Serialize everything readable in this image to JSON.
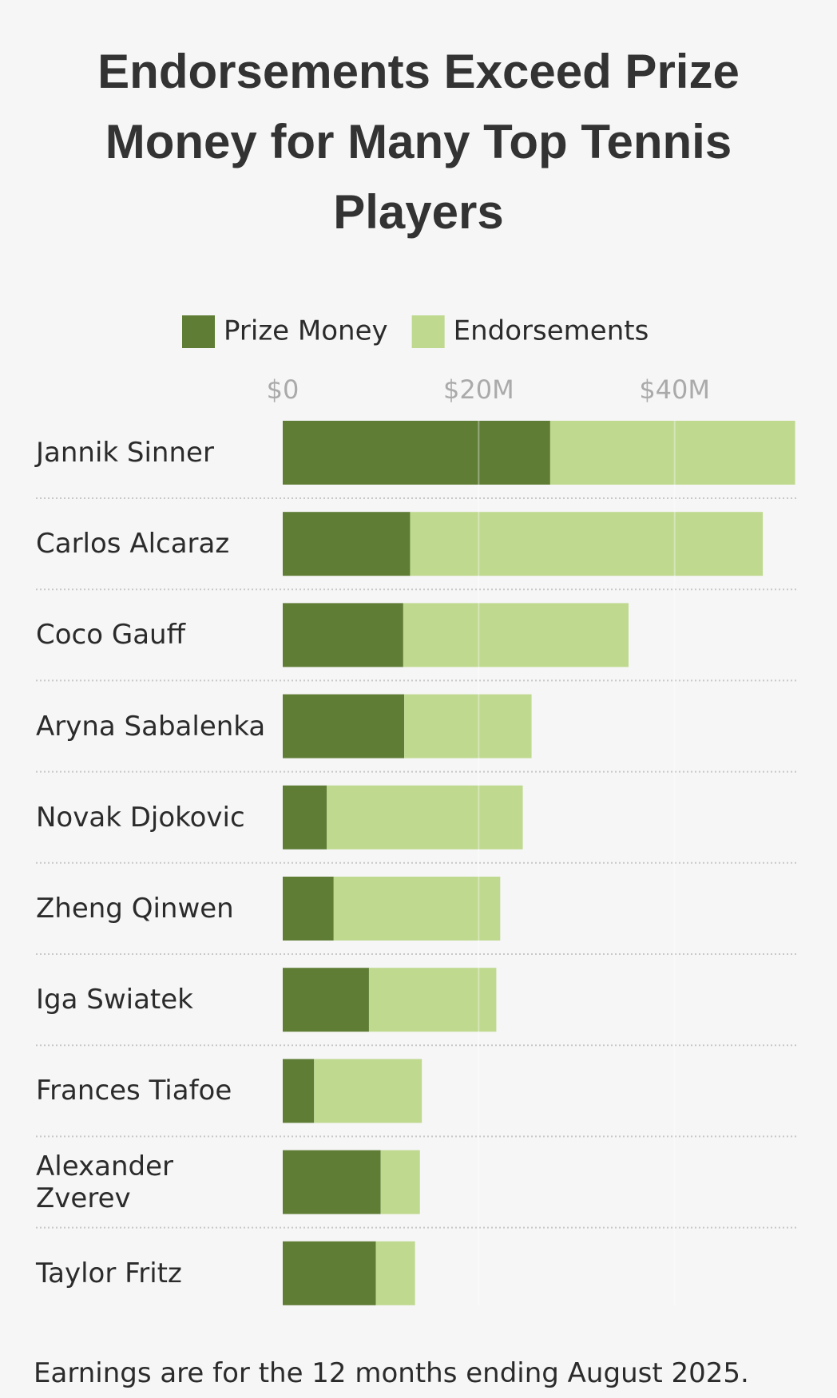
{
  "chart_data": {
    "type": "bar",
    "orientation": "horizontal",
    "stacked": true,
    "title": "Endorsements Exceed Prize Money for Many Top Tennis Players",
    "categories": [
      "Jannik Sinner",
      "Carlos Alcaraz",
      "Coco Gauff",
      "Aryna Sabalenka",
      "Novak Djokovic",
      "Zheng Qinwen",
      "Iga Swiatek",
      "Frances Tiafoe",
      "Alexander Zverev",
      "Taylor Fritz"
    ],
    "series": [
      {
        "name": "Prize Money",
        "color": "#5f7d35",
        "values": [
          27.3,
          13,
          12.3,
          12.4,
          4.5,
          5.2,
          8.8,
          3.2,
          10,
          9.5
        ]
      },
      {
        "name": "Endorsements",
        "color": "#bfd98f",
        "values": [
          25,
          36,
          23,
          13,
          20,
          17,
          13,
          11,
          4,
          4
        ]
      }
    ],
    "xlim": [
      0,
      52.5
    ],
    "xticks": [
      {
        "value": 0,
        "label": "$0"
      },
      {
        "value": 20,
        "label": "$20M"
      },
      {
        "value": 40,
        "label": "$40M"
      }
    ],
    "grid": true,
    "note": "Earnings are for the 12 months ending August 2025."
  }
}
